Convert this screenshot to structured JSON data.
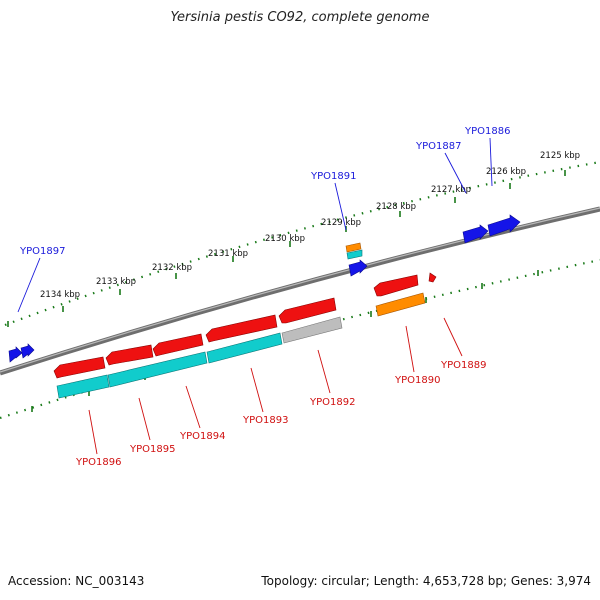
{
  "title": "Yersinia pestis CO92, complete genome",
  "footer": {
    "accession": "Accession: NC_003143",
    "summary": "Topology: circular; Length: 4,653,728 bp; Genes: 3,974"
  },
  "colors": {
    "backbone": "#777777",
    "tick_dot": "#1a7a1a",
    "label_top": "#1a1adb",
    "label_bottom": "#d01010",
    "red": "#ee1111",
    "cyan": "#11cccc",
    "orange": "#ff8c00",
    "gray": "#bbbbbb",
    "blue": "#1515e8"
  },
  "ruler_labels": [
    "2125 kbp",
    "2126 kbp",
    "2127 kbp",
    "2128 kbp",
    "2129 kbp",
    "2130 kbp",
    "2131 kbp",
    "2132 kbp",
    "2133 kbp",
    "2134 kbp"
  ],
  "genes_top": [
    {
      "name": "YPO1886"
    },
    {
      "name": "YPO1887"
    },
    {
      "name": "YPO1891"
    },
    {
      "name": "YPO1897"
    }
  ],
  "genes_bottom": [
    {
      "name": "YPO1889"
    },
    {
      "name": "YPO1890"
    },
    {
      "name": "YPO1892"
    },
    {
      "name": "YPO1893"
    },
    {
      "name": "YPO1894"
    },
    {
      "name": "YPO1895"
    },
    {
      "name": "YPO1896"
    }
  ]
}
